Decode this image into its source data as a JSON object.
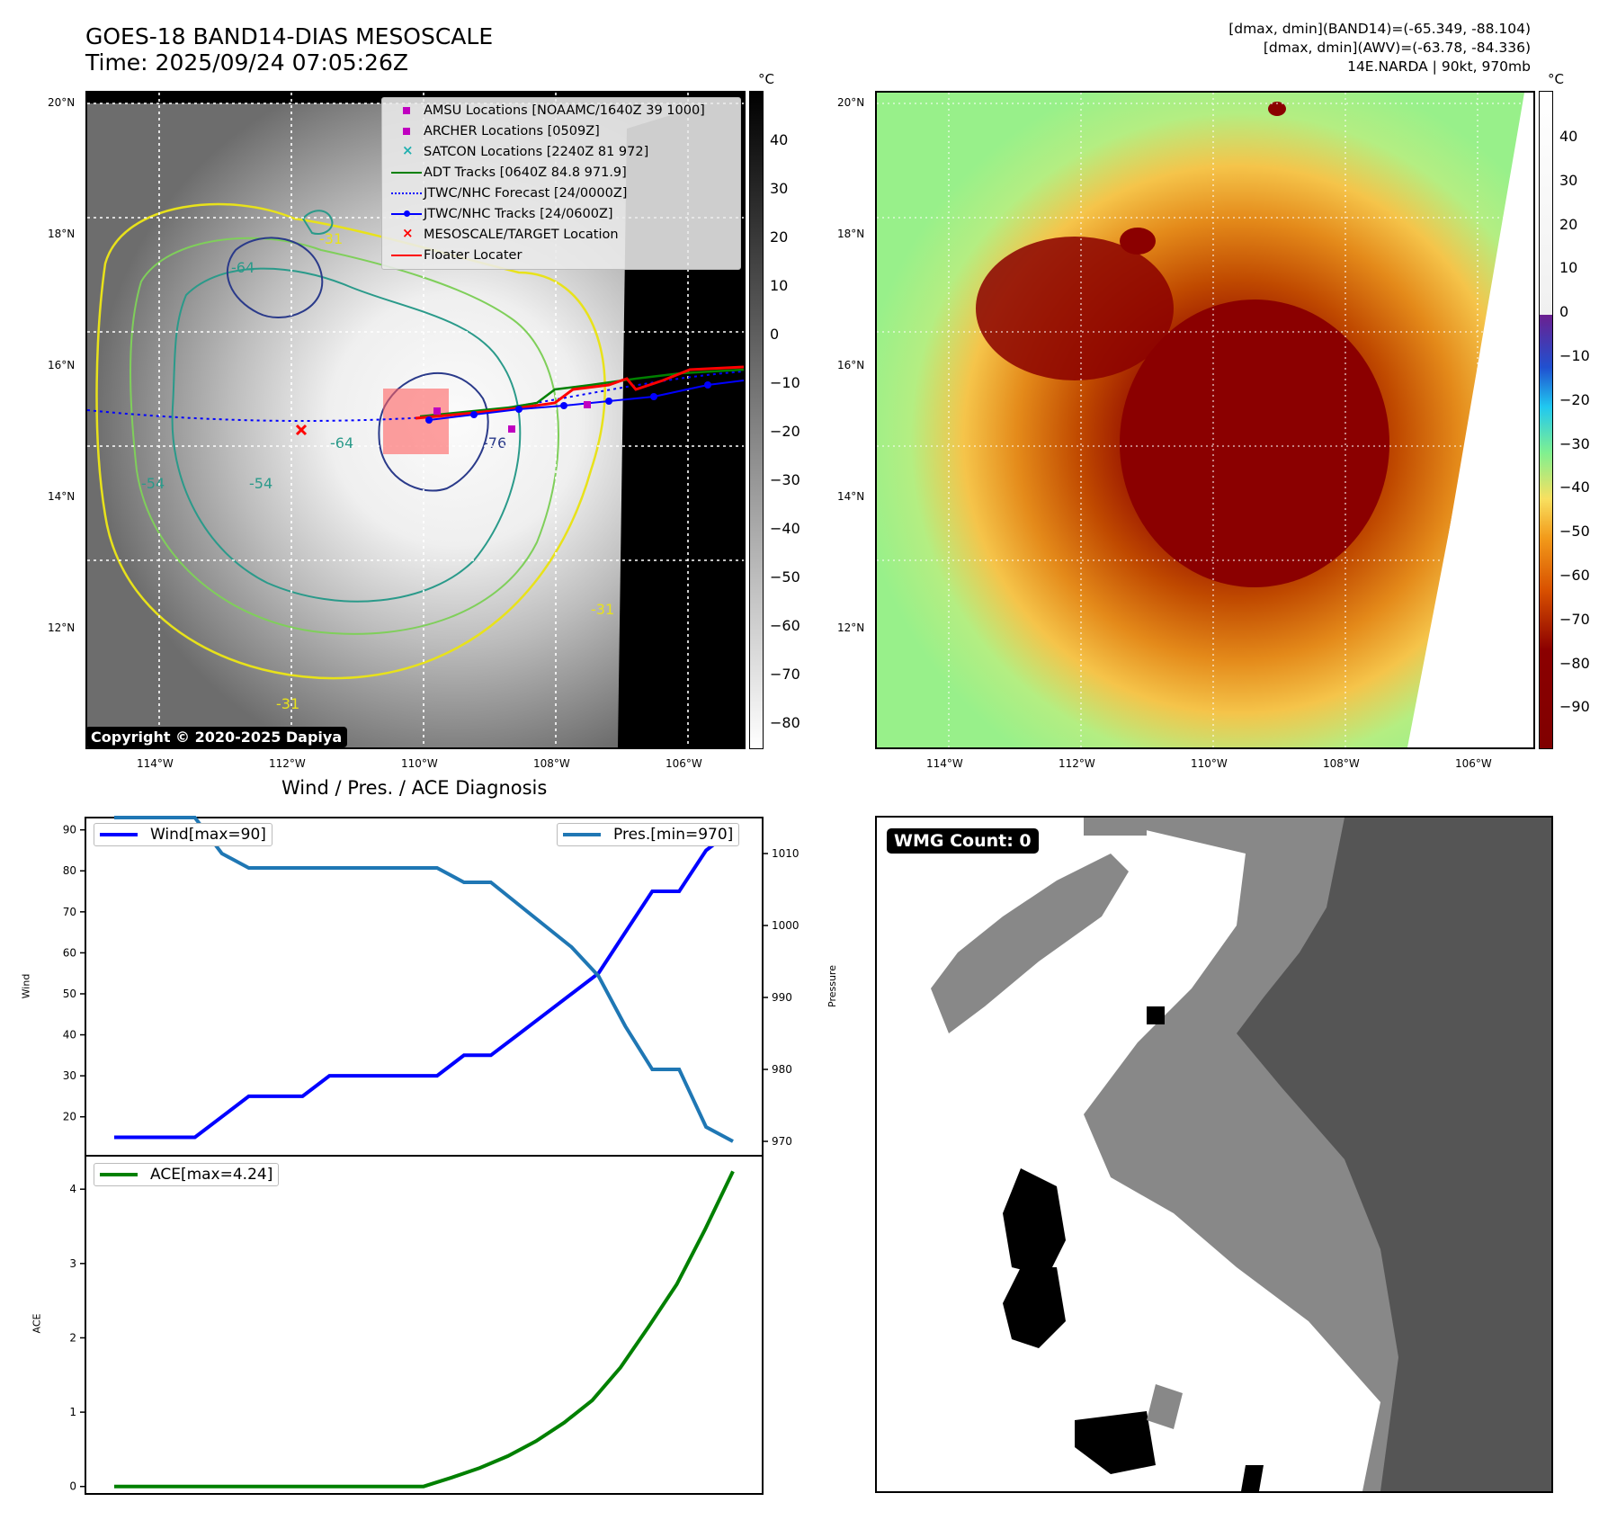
{
  "header": {
    "title_line1": "GOES-18 BAND14-DIAS MESOSCALE",
    "title_line2": "Time: 2025/09/24 07:05:26Z",
    "info_line1": "[dmax, dmin](BAND14)=(-65.349, -88.104)",
    "info_line2": "[dmax, dmin](AWV)=(-63.78, -84.336)",
    "info_line3": "14E.NARDA | 90kt, 970mb"
  },
  "maps": {
    "lat_labels": [
      "20°N",
      "18°N",
      "16°N",
      "14°N",
      "12°N"
    ],
    "lon_labels": [
      "114°W",
      "112°W",
      "110°W",
      "108°W",
      "106°W"
    ],
    "cbar_unit": "°C",
    "cbar1_ticks": [
      "40",
      "30",
      "20",
      "10",
      "0",
      "−10",
      "−20",
      "−30",
      "−40",
      "−50",
      "−60",
      "−70",
      "−80"
    ],
    "cbar2_ticks": [
      "40",
      "30",
      "20",
      "10",
      "0",
      "−10",
      "−20",
      "−30",
      "−40",
      "−50",
      "−60",
      "−70",
      "−80",
      "−90"
    ],
    "copyright": "Copyright © 2020-2025 Dapiya",
    "contour_labels": [
      "-31",
      "-54",
      "-64",
      "-76",
      "-31",
      "-31",
      "-64",
      "-54"
    ],
    "colors": {
      "contour_yellow": "#e8e21a",
      "contour_lightgreen": "#7fcf5a",
      "contour_teal": "#2a9a8a",
      "contour_navy": "#2a3a8a",
      "track_red": "#ff0000",
      "track_blue": "#0000ff",
      "adt_green": "#008000",
      "amsu_magenta": "#c000c0",
      "satcon_cyan": "#20b0b0"
    }
  },
  "legend": {
    "items": [
      {
        "label": "AMSU Locations [NOAAMC/1640Z 39 1000]",
        "symbol": "square",
        "color": "#c000c0"
      },
      {
        "label": "ARCHER Locations [0509Z]",
        "symbol": "square",
        "color": "#c000c0"
      },
      {
        "label": "SATCON Locations [2240Z 81 972]",
        "symbol": "x",
        "color": "#20b0b0"
      },
      {
        "label": "ADT Tracks [0640Z 84.8 971.9]",
        "symbol": "line",
        "color": "#008000"
      },
      {
        "label": "JTWC/NHC Forecast [24/0000Z]",
        "symbol": "dotted",
        "color": "#0000ff"
      },
      {
        "label": "JTWC/NHC Tracks [24/0600Z]",
        "symbol": "line-dot",
        "color": "#0000ff"
      },
      {
        "label": "MESOSCALE/TARGET Location",
        "symbol": "x",
        "color": "#ff0000"
      },
      {
        "label": "Floater Locater",
        "symbol": "line",
        "color": "#ff0000"
      }
    ]
  },
  "diagnosis": {
    "title": "Wind / Pres. / ACE Diagnosis",
    "wind_legend": "Wind[max=90]",
    "pres_legend": "Pres.[min=970]",
    "ace_legend": "ACE[max=4.24]",
    "wind_label": "Wind",
    "pres_label": "Pressure",
    "ace_label": "ACE"
  },
  "wmg": {
    "label": "WMG Count: 0"
  },
  "chart_data": [
    {
      "type": "line",
      "title": "Wind / Pres. / ACE Diagnosis",
      "ylabel": "Wind",
      "ylim": [
        10.5,
        93
      ],
      "yticks": [
        20,
        30,
        40,
        50,
        60,
        70,
        80,
        90
      ],
      "series": [
        {
          "name": "Wind[max=90]",
          "color": "#0000ff",
          "values": [
            15,
            15,
            15,
            15,
            20,
            25,
            25,
            25,
            30,
            30,
            30,
            30,
            30,
            35,
            35,
            40,
            45,
            50,
            55,
            65,
            75,
            75,
            85,
            90
          ]
        }
      ]
    },
    {
      "type": "line",
      "ylabel": "Pressure",
      "ylim": [
        968,
        1015
      ],
      "yticks": [
        970,
        980,
        990,
        1000,
        1010
      ],
      "series": [
        {
          "name": "Pres.[min=970]",
          "color": "#1f77b4",
          "values": [
            1015,
            1015,
            1015,
            1015,
            1010,
            1008,
            1008,
            1008,
            1008,
            1008,
            1008,
            1008,
            1008,
            1006,
            1006,
            1003,
            1000,
            997,
            993,
            986,
            980,
            980,
            972,
            970
          ]
        }
      ]
    },
    {
      "type": "line",
      "ylabel": "ACE",
      "ylim": [
        -0.1,
        4.45
      ],
      "yticks": [
        0,
        1,
        2,
        3,
        4
      ],
      "series": [
        {
          "name": "ACE[max=4.24]",
          "color": "#008000",
          "values": [
            0,
            0,
            0,
            0,
            0,
            0,
            0,
            0,
            0,
            0,
            0,
            0,
            0.12,
            0.25,
            0.41,
            0.61,
            0.86,
            1.16,
            1.6,
            2.15,
            2.72,
            3.45,
            4.24
          ]
        }
      ]
    }
  ]
}
